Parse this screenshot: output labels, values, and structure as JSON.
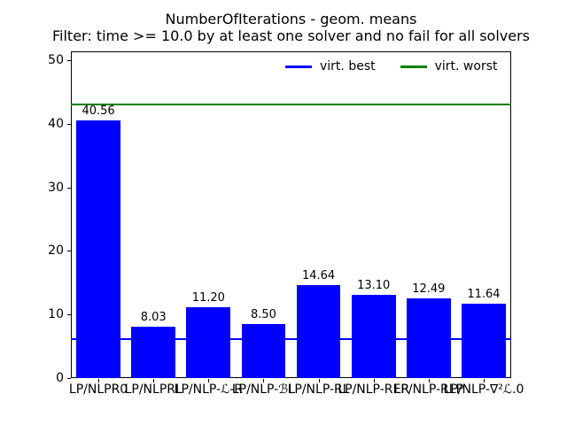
{
  "figure": {
    "background": "#ffffff"
  },
  "chart_data": {
    "type": "bar",
    "title": "NumberOfIterations - geom. means",
    "subtitle": "Filter: time >= 10.0 by at least one solver and no fail for all solvers",
    "categories": [
      "LP/NLPR0",
      "LP/NLPRL",
      "LP/NLP-ℒ-R",
      "LP/NLP-ℬL",
      "LP/NLP-RL",
      "LP/NLP-RER",
      "LP/NLP-RLP",
      "LP/NLP-∇²ℒ.0"
    ],
    "values": [
      40.56,
      8.03,
      11.2,
      8.5,
      14.64,
      13.1,
      12.49,
      11.64
    ],
    "bar_value_labels": [
      "40.56",
      "8.03",
      "11.20",
      "8.50",
      "14.64",
      "13.10",
      "12.49",
      "11.64"
    ],
    "bar_color": "#0000ff",
    "xlabel": "",
    "ylabel": "",
    "ylim": [
      0,
      51.4
    ],
    "yticks": [
      "0",
      "10",
      "20",
      "30",
      "40",
      "50"
    ],
    "grid": false,
    "legend": {
      "position": "upper center",
      "frame": false
    },
    "reference_lines": [
      {
        "label": "virt. best",
        "value": 6.1,
        "color": "#0000ff"
      },
      {
        "label": "virt. worst",
        "value": 43.0,
        "color": "#008000"
      }
    ]
  }
}
